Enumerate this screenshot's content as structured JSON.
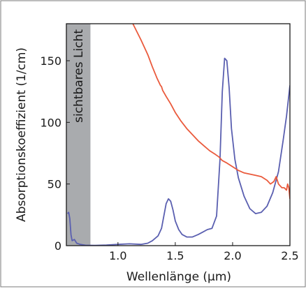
{
  "colors": {
    "background": "#ffffff",
    "border": "#7a7a7a",
    "axis": "#1a1a1a",
    "visible_band": "#a9abae",
    "series_blue": "#5a5fb0",
    "series_red": "#ea5a3c"
  },
  "chart_data": {
    "type": "line",
    "title": "",
    "xlabel": "Wellenlänge (µm)",
    "ylabel": "Absorptionskoeffizient (1/cm)",
    "xlim": [
      0.55,
      2.5
    ],
    "ylim": [
      0,
      180
    ],
    "xticks": [
      {
        "value": 1.0,
        "label": "1.0"
      },
      {
        "value": 1.5,
        "label": "1.5"
      },
      {
        "value": 2.0,
        "label": "2.0"
      },
      {
        "value": 2.5,
        "label": "2.5"
      }
    ],
    "yticks": [
      {
        "value": 0,
        "label": "0"
      },
      {
        "value": 50,
        "label": "50"
      },
      {
        "value": 100,
        "label": "100"
      },
      {
        "value": 150,
        "label": "150"
      }
    ],
    "shaded_region": {
      "x_from": 0.55,
      "x_to": 0.76,
      "label": "sichtbares Licht"
    },
    "series": [
      {
        "color": "#5a5fb0",
        "points": [
          [
            0.56,
            26
          ],
          [
            0.57,
            27
          ],
          [
            0.58,
            22
          ],
          [
            0.59,
            9
          ],
          [
            0.6,
            4
          ],
          [
            0.62,
            5
          ],
          [
            0.64,
            2
          ],
          [
            0.67,
            1
          ],
          [
            0.72,
            0.3
          ],
          [
            0.8,
            0.2
          ],
          [
            0.9,
            0.5
          ],
          [
            1.0,
            1
          ],
          [
            1.1,
            1.5
          ],
          [
            1.2,
            1
          ],
          [
            1.26,
            2
          ],
          [
            1.3,
            4
          ],
          [
            1.35,
            8
          ],
          [
            1.38,
            14
          ],
          [
            1.4,
            24
          ],
          [
            1.42,
            34
          ],
          [
            1.44,
            38
          ],
          [
            1.46,
            36
          ],
          [
            1.48,
            29
          ],
          [
            1.5,
            20
          ],
          [
            1.53,
            13
          ],
          [
            1.56,
            9
          ],
          [
            1.6,
            7
          ],
          [
            1.65,
            7
          ],
          [
            1.7,
            9
          ],
          [
            1.74,
            11
          ],
          [
            1.78,
            13
          ],
          [
            1.82,
            14
          ],
          [
            1.86,
            24
          ],
          [
            1.89,
            70
          ],
          [
            1.91,
            125
          ],
          [
            1.93,
            152
          ],
          [
            1.95,
            150
          ],
          [
            1.97,
            128
          ],
          [
            1.99,
            95
          ],
          [
            2.02,
            70
          ],
          [
            2.05,
            55
          ],
          [
            2.1,
            40
          ],
          [
            2.15,
            30
          ],
          [
            2.2,
            26
          ],
          [
            2.25,
            27
          ],
          [
            2.3,
            32
          ],
          [
            2.35,
            43
          ],
          [
            2.4,
            60
          ],
          [
            2.44,
            85
          ],
          [
            2.47,
            105
          ],
          [
            2.5,
            130
          ]
        ]
      },
      {
        "color": "#ea5a3c",
        "points": [
          [
            1.13,
            180
          ],
          [
            1.2,
            167
          ],
          [
            1.26,
            155
          ],
          [
            1.3,
            145
          ],
          [
            1.34,
            136
          ],
          [
            1.37,
            130
          ],
          [
            1.38,
            129
          ],
          [
            1.39,
            126
          ],
          [
            1.42,
            121
          ],
          [
            1.46,
            115
          ],
          [
            1.5,
            108
          ],
          [
            1.55,
            101
          ],
          [
            1.6,
            95
          ],
          [
            1.65,
            90
          ],
          [
            1.7,
            85
          ],
          [
            1.75,
            81
          ],
          [
            1.8,
            77
          ],
          [
            1.85,
            74
          ],
          [
            1.88,
            72
          ],
          [
            1.91,
            69
          ],
          [
            1.95,
            67
          ],
          [
            2.0,
            64
          ],
          [
            2.05,
            61
          ],
          [
            2.1,
            59
          ],
          [
            2.15,
            58
          ],
          [
            2.2,
            57
          ],
          [
            2.25,
            56
          ],
          [
            2.3,
            53
          ],
          [
            2.33,
            50
          ],
          [
            2.36,
            52
          ],
          [
            2.38,
            56
          ],
          [
            2.4,
            50
          ],
          [
            2.43,
            47
          ],
          [
            2.45,
            47
          ],
          [
            2.47,
            45
          ],
          [
            2.48,
            50
          ],
          [
            2.49,
            47
          ],
          [
            2.5,
            38
          ]
        ]
      }
    ]
  }
}
